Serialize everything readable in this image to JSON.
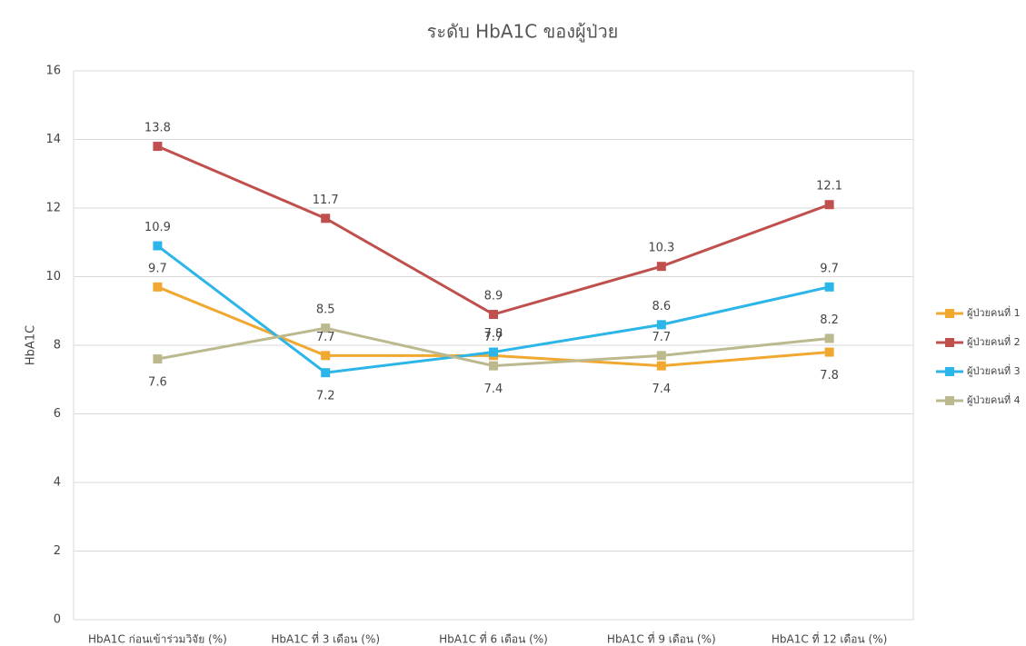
{
  "chart_data": {
    "type": "line",
    "title": "ระดับ HbA1C ของผู้ป่วย",
    "y_label": "HbA1C",
    "categories": [
      "HbA1C ก่อนเข้าร่วมวิจัย (%)",
      "HbA1C ที่ 3 เดือน (%)",
      "HbA1C ที่ 6 เดือน (%)",
      "HbA1C ที่ 9 เดือน (%)",
      "HbA1C ที่ 12 เดือน (%)"
    ],
    "series": [
      {
        "name": "ผู้ป่วยคนที่ 1",
        "color": "#f0a830",
        "values": [
          9.7,
          7.7,
          7.7,
          7.4,
          7.8
        ]
      },
      {
        "name": "ผู้ป่วยคนที่ 2",
        "color": "#c0504d",
        "values": [
          13.8,
          11.7,
          8.9,
          10.3,
          12.1
        ]
      },
      {
        "name": "ผู้ป่วยคนที่ 3",
        "color": "#2bb5e8",
        "values": [
          10.9,
          7.2,
          7.8,
          8.6,
          9.7
        ]
      },
      {
        "name": "ผู้ป่วยคนที่ 4",
        "color": "#bcb98f",
        "values": [
          7.6,
          8.5,
          7.4,
          7.7,
          8.2
        ]
      }
    ],
    "ylim": [
      0,
      16
    ],
    "yticks": [
      0,
      2,
      4,
      6,
      8,
      10,
      12,
      14,
      16
    ],
    "grid": true,
    "legend": "right",
    "data_labels": true
  }
}
